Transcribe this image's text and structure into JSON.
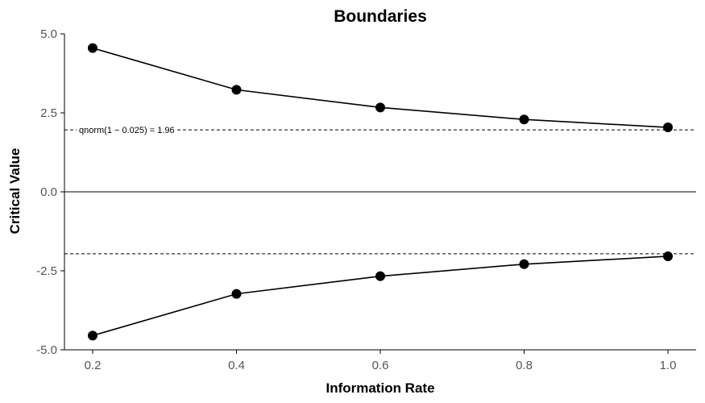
{
  "chart_data": {
    "type": "line",
    "title": "Boundaries",
    "xlabel": "Information Rate",
    "ylabel": "Critical Value",
    "x": [
      0.2,
      0.4,
      0.6,
      0.8,
      1.0
    ],
    "series": [
      {
        "values": [
          4.55,
          3.23,
          2.67,
          2.29,
          2.04
        ]
      },
      {
        "values": [
          -4.55,
          -3.23,
          -2.67,
          -2.29,
          -2.04
        ]
      }
    ],
    "xlim": [
      0.2,
      1.0
    ],
    "ylim": [
      -5.0,
      5.0
    ],
    "x_ticks": [
      0.2,
      0.4,
      0.6,
      0.8,
      1.0
    ],
    "x_tick_labels": [
      "0.2",
      "0.4",
      "0.6",
      "0.8",
      "1.0"
    ],
    "y_ticks": [
      5.0,
      2.5,
      0.0,
      -2.5,
      -5.0
    ],
    "y_tick_labels": [
      "5.0",
      "2.5",
      "0.0",
      "-2.5",
      "-5.0"
    ],
    "reference_lines": [
      {
        "y": 0.0,
        "style": "solid"
      },
      {
        "y": 1.96,
        "style": "dashed"
      },
      {
        "y": -1.96,
        "style": "dashed"
      }
    ],
    "annotation": "qnorm(1 − 0.025) = 1.96",
    "grid": false,
    "legend": "none",
    "colors": {
      "line": "#000000",
      "points": "#000000",
      "tick_labels": "#555555"
    }
  }
}
